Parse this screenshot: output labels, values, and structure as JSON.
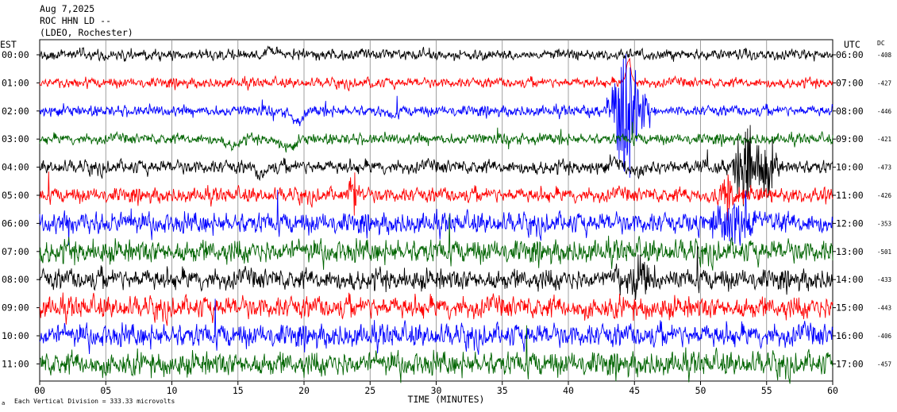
{
  "header": {
    "date": "Aug 7,2025",
    "station": "ROC HHN LD --",
    "network": "(LDEO, Rochester)"
  },
  "left_label": "EST",
  "right_label": "UTC",
  "dc_label": "DC",
  "footer_note": "Each Vertical Division =  333.33 microvolts",
  "chart_data": {
    "type": "line",
    "xlabel": "TIME (MINUTES)",
    "xlim": [
      0,
      60
    ],
    "x_ticks": [
      "00",
      "05",
      "10",
      "15",
      "20",
      "25",
      "30",
      "35",
      "40",
      "45",
      "50",
      "55",
      "60"
    ],
    "rows": [
      {
        "est": "00:00",
        "utc": "06:00",
        "dc": "-408",
        "color": "#000000",
        "noise": 0.28,
        "events": [
          {
            "t": 17.8,
            "amp": -6,
            "w": 0.8
          },
          {
            "t": 16.5,
            "amp": 3,
            "w": 0.6
          }
        ]
      },
      {
        "est": "01:00",
        "utc": "07:00",
        "dc": "-427",
        "color": "#ff0000",
        "noise": 0.26,
        "events": [
          {
            "t": 44.6,
            "amp": -30,
            "w": 0.25
          },
          {
            "t": 25.2,
            "amp": 4,
            "w": 0.2
          }
        ]
      },
      {
        "est": "02:00",
        "utc": "08:00",
        "dc": "-446",
        "color": "#0000ff",
        "noise": 0.3,
        "events": [
          {
            "t": 19.5,
            "amp": 12,
            "w": 0.7
          },
          {
            "t": 26.5,
            "amp": 6,
            "w": 0.6
          },
          {
            "t": 44.5,
            "amp": 40,
            "w": 1.2,
            "burst": true
          }
        ]
      },
      {
        "est": "03:00",
        "utc": "09:00",
        "dc": "-421",
        "color": "#006400",
        "noise": 0.3,
        "events": [
          {
            "t": 14.6,
            "amp": 8,
            "w": 0.6
          },
          {
            "t": 18.8,
            "amp": 10,
            "w": 0.8
          }
        ]
      },
      {
        "est": "04:00",
        "utc": "10:00",
        "dc": "-473",
        "color": "#000000",
        "noise": 0.45,
        "events": [
          {
            "t": 16.6,
            "amp": 10,
            "w": 0.5
          },
          {
            "t": 43.6,
            "amp": -6,
            "w": 0.6
          },
          {
            "t": 45,
            "amp": 8,
            "w": 0.6
          },
          {
            "t": 53.3,
            "amp": 30,
            "w": 0.8,
            "burst": true
          },
          {
            "t": 55,
            "amp": 20,
            "w": 0.8,
            "burst": true
          }
        ]
      },
      {
        "est": "05:00",
        "utc": "11:00",
        "dc": "-426",
        "color": "#ff0000",
        "noise": 0.5,
        "events": [
          {
            "t": 23.7,
            "amp": -22,
            "w": 0.3,
            "burst": true
          },
          {
            "t": 52,
            "amp": 12,
            "w": 1.0,
            "burst": true
          }
        ]
      },
      {
        "est": "06:00",
        "utc": "12:00",
        "dc": "-353",
        "color": "#0000ff",
        "noise": 0.8,
        "events": [
          {
            "t": 51.8,
            "amp": 16,
            "w": 1.2,
            "burst": true
          },
          {
            "t": 53,
            "amp": 14,
            "w": 1.0,
            "burst": true
          }
        ]
      },
      {
        "est": "07:00",
        "utc": "13:00",
        "dc": "-501",
        "color": "#006400",
        "noise": 0.9,
        "events": []
      },
      {
        "est": "08:00",
        "utc": "14:00",
        "dc": "-433",
        "color": "#000000",
        "noise": 0.8,
        "events": [
          {
            "t": 45.5,
            "amp": 14,
            "w": 1.0,
            "burst": true
          }
        ]
      },
      {
        "est": "09:00",
        "utc": "15:00",
        "dc": "-443",
        "color": "#ff0000",
        "noise": 0.85,
        "events": []
      },
      {
        "est": "10:00",
        "utc": "16:00",
        "dc": "-406",
        "color": "#0000ff",
        "noise": 0.9,
        "events": []
      },
      {
        "est": "11:00",
        "utc": "17:00",
        "dc": "-457",
        "color": "#006400",
        "noise": 0.95,
        "events": []
      }
    ]
  }
}
